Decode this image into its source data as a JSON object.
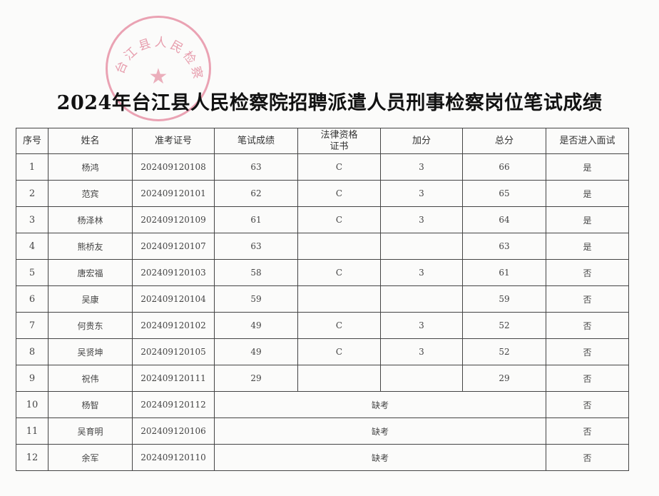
{
  "stamp_text": "台江县人民检察院",
  "title": "2024年台江县人民检察院招聘派遣人员刑事检察岗位笔试成绩",
  "headers": [
    "序号",
    "姓名",
    "准考证号",
    "笔试成绩",
    "法律资格证书",
    "加分",
    "总分",
    "是否进入面试"
  ],
  "rows": [
    {
      "no": "1",
      "name": "杨鸿",
      "id": "202409120108",
      "score": "63",
      "cert": "C",
      "bonus": "3",
      "total": "66",
      "interview": "是"
    },
    {
      "no": "2",
      "name": "范宾",
      "id": "202409120101",
      "score": "62",
      "cert": "C",
      "bonus": "3",
      "total": "65",
      "interview": "是"
    },
    {
      "no": "3",
      "name": "杨泽林",
      "id": "202409120109",
      "score": "61",
      "cert": "C",
      "bonus": "3",
      "total": "64",
      "interview": "是"
    },
    {
      "no": "4",
      "name": "熊桥友",
      "id": "202409120107",
      "score": "63",
      "cert": "",
      "bonus": "",
      "total": "63",
      "interview": "是"
    },
    {
      "no": "5",
      "name": "唐宏福",
      "id": "202409120103",
      "score": "58",
      "cert": "C",
      "bonus": "3",
      "total": "61",
      "interview": "否"
    },
    {
      "no": "6",
      "name": "吴康",
      "id": "202409120104",
      "score": "59",
      "cert": "",
      "bonus": "",
      "total": "59",
      "interview": "否"
    },
    {
      "no": "7",
      "name": "何贵东",
      "id": "202409120102",
      "score": "49",
      "cert": "C",
      "bonus": "3",
      "total": "52",
      "interview": "否"
    },
    {
      "no": "8",
      "name": "吴贤坤",
      "id": "202409120105",
      "score": "49",
      "cert": "C",
      "bonus": "3",
      "total": "52",
      "interview": "否"
    },
    {
      "no": "9",
      "name": "祝伟",
      "id": "202409120111",
      "score": "29",
      "cert": "",
      "bonus": "",
      "total": "29",
      "interview": "否"
    }
  ],
  "absent_rows": [
    {
      "no": "10",
      "name": "杨智",
      "id": "202409120112",
      "status": "缺考",
      "interview": "否"
    },
    {
      "no": "11",
      "name": "吴育明",
      "id": "202409120106",
      "status": "缺考",
      "interview": "否"
    },
    {
      "no": "12",
      "name": "余军",
      "id": "202409120110",
      "status": "缺考",
      "interview": "否"
    }
  ]
}
